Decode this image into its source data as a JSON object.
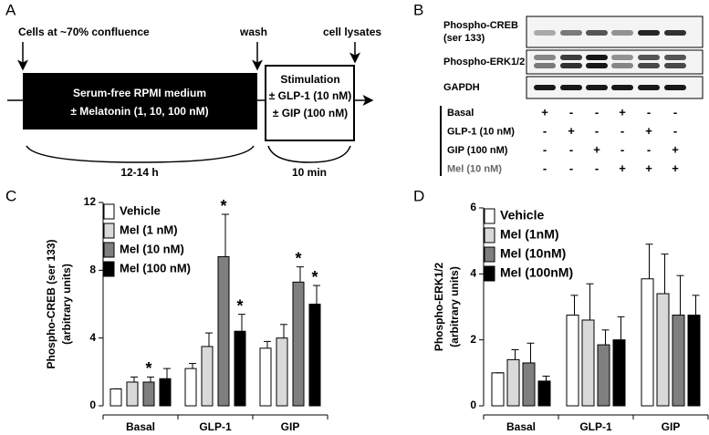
{
  "panel_a": {
    "label": "A",
    "start": "Cells at ~70% confluence",
    "wash": "wash",
    "end": "cell lysates",
    "medium": [
      "Serum-free RPMI medium",
      "± Melatonin (1, 10, 100 nM)"
    ],
    "stimulation": [
      "Stimulation",
      "± GLP-1 (10 nM)",
      "± GIP (100 nM)"
    ],
    "durations": [
      "12-14 h",
      "10 min"
    ]
  },
  "panel_b": {
    "label": "B",
    "blots": [
      [
        "Phospho-CREB",
        "(ser 133)"
      ],
      [
        "Phospho-ERK1/2"
      ],
      [
        "GAPDH"
      ]
    ],
    "conditions": [
      {
        "name": "Basal",
        "signs": [
          "+",
          "-",
          "-",
          "+",
          "-",
          "-"
        ]
      },
      {
        "name": "GLP-1 (10 nM)",
        "signs": [
          "-",
          "+",
          "-",
          "-",
          "+",
          "-"
        ]
      },
      {
        "name": "GIP (100 nM)",
        "signs": [
          "-",
          "-",
          "+",
          "-",
          "-",
          "+"
        ]
      },
      {
        "name": "Mel (10 nM)",
        "signs": [
          "-",
          "-",
          "-",
          "+",
          "+",
          "+"
        ]
      }
    ]
  },
  "chart_data": [
    {
      "type": "bar",
      "panel": "C",
      "ylabel": [
        "Phospho-CREB (ser 133)",
        "(arbitrary units)"
      ],
      "categories": [
        "Basal",
        "GLP-1",
        "GIP"
      ],
      "ylim": [
        0,
        12
      ],
      "yticks": [
        0,
        4,
        8,
        12
      ],
      "series": [
        {
          "name": "Vehicle",
          "color": "#ffffff",
          "values": [
            1.0,
            2.2,
            3.4
          ],
          "errors": [
            0,
            0.3,
            0.4
          ],
          "annotations": [
            null,
            null,
            null
          ]
        },
        {
          "name": "Mel (1 nM)",
          "color": "#d9d9d9",
          "values": [
            1.4,
            3.5,
            4.0
          ],
          "errors": [
            0.3,
            0.8,
            0.8
          ],
          "annotations": [
            null,
            null,
            null
          ]
        },
        {
          "name": "Mel (10 nM)",
          "color": "#7f7f7f",
          "values": [
            1.4,
            8.8,
            7.3
          ],
          "errors": [
            0.3,
            2.5,
            0.9
          ],
          "annotations": [
            "*",
            "*",
            "*"
          ]
        },
        {
          "name": "Mel (100 nM)",
          "color": "#000000",
          "values": [
            1.6,
            4.4,
            6.0
          ],
          "errors": [
            0.6,
            1.0,
            1.1
          ],
          "annotations": [
            null,
            "*",
            "*"
          ]
        }
      ]
    },
    {
      "type": "bar",
      "panel": "D",
      "ylabel": [
        "Phospho-ERK1/2",
        "(arbitrary units)"
      ],
      "categories": [
        "Basal",
        "GLP-1",
        "GIP"
      ],
      "ylim": [
        0,
        6
      ],
      "yticks": [
        0,
        2,
        4,
        6
      ],
      "series": [
        {
          "name": "Vehicle",
          "color": "#ffffff",
          "values": [
            1.0,
            2.75,
            3.85
          ],
          "errors": [
            0,
            0.6,
            1.05
          ]
        },
        {
          "name": "Mel (1nM)",
          "color": "#d9d9d9",
          "values": [
            1.4,
            2.6,
            3.4
          ],
          "errors": [
            0.3,
            1.1,
            1.2
          ]
        },
        {
          "name": "Mel (10nM)",
          "color": "#7f7f7f",
          "values": [
            1.3,
            1.85,
            2.75
          ],
          "errors": [
            0.6,
            0.45,
            1.2
          ]
        },
        {
          "name": "Mel (100nM)",
          "color": "#000000",
          "values": [
            0.75,
            2.0,
            2.75
          ],
          "errors": [
            0.15,
            0.7,
            0.6
          ]
        }
      ]
    }
  ]
}
